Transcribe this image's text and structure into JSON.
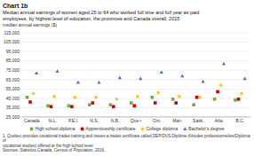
{
  "chart_data": {
    "type": "scatter",
    "title": "Chart 1b",
    "subtitle": [
      "Median annual earnings of women aged 25 to 64 who worked full time and full year as paid",
      "employees, by highest level of education, the provinces and Canada overall, 2015"
    ],
    "ylabel": "median annual earnings ($)",
    "annotations": [
      "1. Quebec provides vocational trades training and issues a trades certificate called DEP/DVS-Diplôme d'études professionnelles/Diploma of",
      "vocational studies) offered at the high school level.",
      "Sources: Statistics Canada, Census of Population, 2016."
    ],
    "categories": [
      "Canada",
      "N.L.",
      "P.E.I.",
      "N.S.",
      "N.B.",
      "Que.¹",
      "Ont.",
      "Man.",
      "Sask.",
      "Alta.",
      "B.C."
    ],
    "series": [
      {
        "name": "High school diploma",
        "color": "#70ad47",
        "marker": "square",
        "values": [
          46000,
          37000,
          37000,
          38000,
          38000,
          40000,
          46000,
          44000,
          38000,
          44000,
          43000
        ]
      },
      {
        "name": "Apprenticeship certificate",
        "color": "#cc0000",
        "marker": "square",
        "values": [
          41000,
          36000,
          36000,
          40000,
          36000,
          37000,
          40000,
          40000,
          46000,
          52000,
          44000
        ]
      },
      {
        "name": "College diploma",
        "color": "#ffc000",
        "marker": "plus",
        "values": [
          50000,
          47000,
          46000,
          46000,
          44000,
          47000,
          51000,
          47000,
          46000,
          59000,
          50000
        ]
      },
      {
        "name": "Bachelor's degree",
        "color": "#4472c4",
        "marker": "triangle",
        "values": [
          72000,
          74000,
          62000,
          62000,
          67000,
          66000,
          73000,
          69000,
          63000,
          82000,
          66000
        ]
      }
    ],
    "ylim": [
      25000,
      115000
    ],
    "yticks": [
      {
        "value": 25000,
        "label": "25,000"
      },
      {
        "value": 35000,
        "label": "35,000"
      },
      {
        "value": 45000,
        "label": "45,000"
      },
      {
        "value": 55000,
        "label": "55,000"
      },
      {
        "value": 65000,
        "label": "65,000"
      },
      {
        "value": 75000,
        "label": "75,000"
      },
      {
        "value": 85000,
        "label": "85,000"
      },
      {
        "value": 95000,
        "label": "95,000"
      },
      {
        "value": 105000,
        "label": "105,000"
      },
      {
        "value": 115000,
        "label": "115,000"
      }
    ],
    "grid": true,
    "legend": "bottom"
  }
}
